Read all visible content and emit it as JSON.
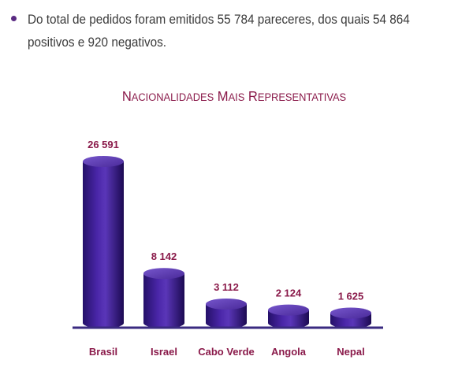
{
  "bullet": {
    "text": "Do total de pedidos foram emitidos 55 784 pareceres, dos quais 54 864 positivos e 920 negativos."
  },
  "colors": {
    "title": "#8a1a4a",
    "labels": "#8a1a4a",
    "bar_main": "#3a1a88",
    "bar_dark": "#1f0c55",
    "bar_light": "#6a4ac8",
    "baseline": "#3a2a80"
  },
  "chart_data": {
    "type": "bar",
    "title": "Nacionalidades mais Representativas",
    "categories": [
      "Brasil",
      "Israel",
      "Cabo Verde",
      "Angola",
      "Nepal"
    ],
    "values": [
      26591,
      8142,
      3112,
      2124,
      1625
    ],
    "value_labels": [
      "26 591",
      "8 142",
      "3 112",
      "2 124",
      "1 625"
    ],
    "xlabel": "",
    "ylabel": "",
    "grid": false,
    "legend": "none"
  }
}
